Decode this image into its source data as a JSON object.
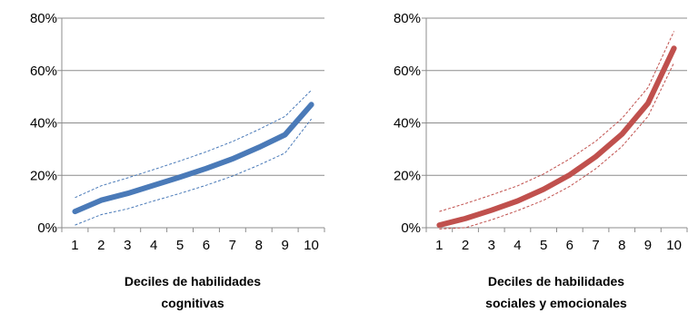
{
  "chart_data": [
    {
      "type": "line",
      "x": [
        1,
        2,
        3,
        4,
        5,
        6,
        7,
        8,
        9,
        10
      ],
      "categories": [
        "1",
        "2",
        "3",
        "4",
        "5",
        "6",
        "7",
        "8",
        "9",
        "10"
      ],
      "series": [
        {
          "name": "",
          "role": "estimate",
          "color": "#4a7ab8",
          "style": "solid-thick",
          "values": [
            0.062,
            0.105,
            0.131,
            0.162,
            0.193,
            0.226,
            0.263,
            0.307,
            0.355,
            0.47
          ]
        },
        {
          "name": "",
          "role": "upper-bound",
          "color": "#4a7ab8",
          "style": "dashed-thin",
          "values": [
            0.115,
            0.16,
            0.19,
            0.222,
            0.255,
            0.29,
            0.329,
            0.375,
            0.425,
            0.525
          ]
        },
        {
          "name": "",
          "role": "lower-bound",
          "color": "#4a7ab8",
          "style": "dashed-thin",
          "values": [
            0.01,
            0.05,
            0.072,
            0.102,
            0.131,
            0.162,
            0.197,
            0.239,
            0.285,
            0.415
          ]
        }
      ],
      "ylim": [
        0,
        0.8
      ],
      "yticks": [
        0,
        0.2,
        0.4,
        0.6,
        0.8
      ],
      "ytick_labels": [
        "0%",
        "20%",
        "40%",
        "60%",
        "80%"
      ],
      "xlabel_lines": [
        "Deciles de habilidades",
        "cognitivas"
      ],
      "grid": "horizontal"
    },
    {
      "type": "line",
      "x": [
        1,
        2,
        3,
        4,
        5,
        6,
        7,
        8,
        9,
        10
      ],
      "categories": [
        "1",
        "2",
        "3",
        "4",
        "5",
        "6",
        "7",
        "8",
        "9",
        "10"
      ],
      "series": [
        {
          "name": "",
          "role": "estimate",
          "color": "#c0504d",
          "style": "solid-thick",
          "values": [
            0.01,
            0.035,
            0.067,
            0.102,
            0.147,
            0.202,
            0.271,
            0.357,
            0.475,
            0.685
          ]
        },
        {
          "name": "",
          "role": "upper-bound",
          "color": "#c0504d",
          "style": "dashed-thin",
          "values": [
            0.062,
            0.092,
            0.125,
            0.16,
            0.205,
            0.263,
            0.33,
            0.417,
            0.535,
            0.75
          ]
        },
        {
          "name": "",
          "role": "lower-bound",
          "color": "#c0504d",
          "style": "dashed-thin",
          "values": [
            -0.005,
            0.0,
            0.03,
            0.065,
            0.105,
            0.158,
            0.225,
            0.31,
            0.425,
            0.63
          ]
        }
      ],
      "ylim": [
        0,
        0.8
      ],
      "yticks": [
        0,
        0.2,
        0.4,
        0.6,
        0.8
      ],
      "ytick_labels": [
        "0%",
        "20%",
        "40%",
        "60%",
        "80%"
      ],
      "xlabel_lines": [
        "Deciles de habilidades",
        "sociales y emocionales"
      ],
      "grid": "horizontal"
    }
  ]
}
